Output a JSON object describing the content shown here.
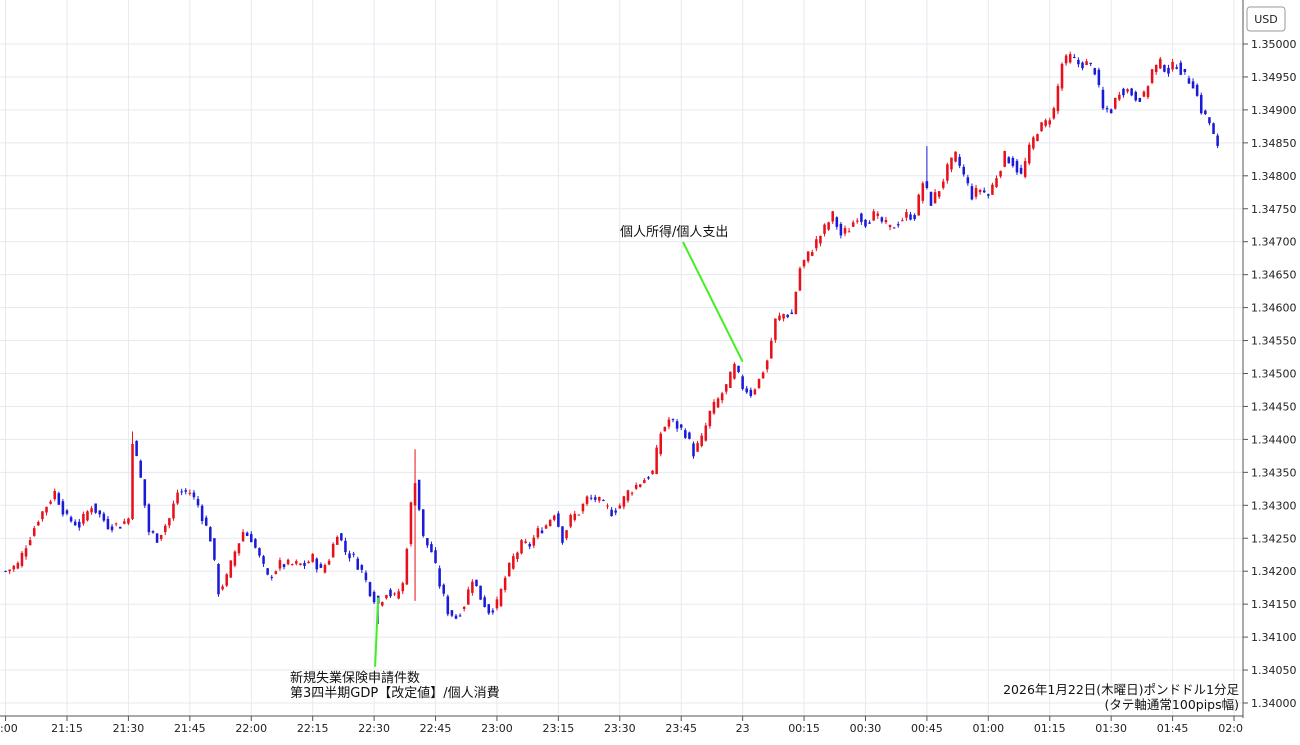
{
  "chart_data": {
    "type": "candlestick",
    "currency_label": "USD",
    "y_ticks": [
      "1.34000",
      "1.34050",
      "1.34100",
      "1.34150",
      "1.34200",
      "1.34250",
      "1.34300",
      "1.34350",
      "1.34400",
      "1.34450",
      "1.34500",
      "1.34550",
      "1.34600",
      "1.34650",
      "1.34700",
      "1.34750",
      "1.34800",
      "1.34850",
      "1.34900",
      "1.34950",
      "1.35000"
    ],
    "ylim": [
      1.3398,
      1.35025
    ],
    "x_ticks": [
      ":00",
      "21:15",
      "21:30",
      "21:45",
      "22:00",
      "22:15",
      "22:30",
      "22:45",
      "23:00",
      "23:15",
      "23:30",
      "23:45",
      "23",
      "00:15",
      "00:30",
      "00:45",
      "01:00",
      "01:15",
      "01:30",
      "01:45",
      "02:0"
    ],
    "grid": true,
    "colors": {
      "up": "#e8101a",
      "down": "#1a1ad8",
      "annotation_line": "#44ee22",
      "grid": "#e4eaf0"
    },
    "annotations": [
      {
        "lines": [
          "新規失業保険申請件数",
          "第3四半期GDP【改定値】/個人消費"
        ],
        "time": "22:30",
        "price": 1.3406
      },
      {
        "lines": [
          "個人所得/個人支出"
        ],
        "time": "00:00",
        "price": 1.3451
      }
    ],
    "caption": [
      "2026年1月22日(木曜日)ポンドドル1分足",
      "(タテ軸通常100pips幅)"
    ],
    "keypoints": [
      [
        "21:00",
        1.342
      ],
      [
        "21:03",
        1.3421
      ],
      [
        "21:05",
        1.3424
      ],
      [
        "21:08",
        1.3428
      ],
      [
        "21:10",
        1.343
      ],
      [
        "21:12",
        1.3432
      ],
      [
        "21:15",
        1.3428
      ],
      [
        "21:18",
        1.3427
      ],
      [
        "21:21",
        1.343
      ],
      [
        "21:25",
        1.3427
      ],
      [
        "21:28",
        1.3427
      ],
      [
        "21:30",
        1.3428
      ],
      [
        "21:31",
        1.344
      ],
      [
        "21:33",
        1.3434
      ],
      [
        "21:35",
        1.3426
      ],
      [
        "21:37",
        1.3425
      ],
      [
        "21:40",
        1.3428
      ],
      [
        "21:42",
        1.3432
      ],
      [
        "21:45",
        1.3432
      ],
      [
        "21:47",
        1.343
      ],
      [
        "21:50",
        1.3425
      ],
      [
        "21:52",
        1.3417
      ],
      [
        "21:54",
        1.3419
      ],
      [
        "21:56",
        1.3423
      ],
      [
        "21:58",
        1.3426
      ],
      [
        "22:00",
        1.3425
      ],
      [
        "22:02",
        1.3422
      ],
      [
        "22:04",
        1.3419
      ],
      [
        "22:07",
        1.3421
      ],
      [
        "22:10",
        1.3421
      ],
      [
        "22:13",
        1.3421
      ],
      [
        "22:15",
        1.3422
      ],
      [
        "22:17",
        1.342
      ],
      [
        "22:19",
        1.3422
      ],
      [
        "22:21",
        1.3426
      ],
      [
        "22:23",
        1.3423
      ],
      [
        "22:25",
        1.3422
      ],
      [
        "22:27",
        1.342
      ],
      [
        "22:29",
        1.3417
      ],
      [
        "22:31",
        1.3415
      ],
      [
        "22:33",
        1.3417
      ],
      [
        "22:35",
        1.3416
      ],
      [
        "22:37",
        1.3418
      ],
      [
        "22:39",
        1.343
      ],
      [
        "22:40",
        1.3434
      ],
      [
        "22:42",
        1.3425
      ],
      [
        "22:44",
        1.3423
      ],
      [
        "22:46",
        1.3418
      ],
      [
        "22:48",
        1.3414
      ],
      [
        "22:50",
        1.3413
      ],
      [
        "22:52",
        1.3415
      ],
      [
        "22:54",
        1.3419
      ],
      [
        "22:56",
        1.3416
      ],
      [
        "22:58",
        1.3414
      ],
      [
        "23:00",
        1.3415
      ],
      [
        "23:02",
        1.3419
      ],
      [
        "23:04",
        1.3422
      ],
      [
        "23:06",
        1.3424
      ],
      [
        "23:08",
        1.3424
      ],
      [
        "23:10",
        1.3426
      ],
      [
        "23:12",
        1.3427
      ],
      [
        "23:14",
        1.3429
      ],
      [
        "23:16",
        1.3425
      ],
      [
        "23:18",
        1.3428
      ],
      [
        "23:20",
        1.3429
      ],
      [
        "23:22",
        1.3431
      ],
      [
        "23:24",
        1.3431
      ],
      [
        "23:26",
        1.343
      ],
      [
        "23:28",
        1.3429
      ],
      [
        "23:30",
        1.343
      ],
      [
        "23:32",
        1.3432
      ],
      [
        "23:34",
        1.3433
      ],
      [
        "23:36",
        1.3434
      ],
      [
        "23:38",
        1.3435
      ],
      [
        "23:40",
        1.3441
      ],
      [
        "23:42",
        1.3443
      ],
      [
        "23:44",
        1.3442
      ],
      [
        "23:46",
        1.3441
      ],
      [
        "23:48",
        1.3438
      ],
      [
        "23:50",
        1.344
      ],
      [
        "23:52",
        1.3444
      ],
      [
        "23:54",
        1.3446
      ],
      [
        "23:56",
        1.3448
      ],
      [
        "23:58",
        1.3451
      ],
      [
        "00:00",
        1.3448
      ],
      [
        "00:02",
        1.3447
      ],
      [
        "00:04",
        1.3449
      ],
      [
        "00:06",
        1.3452
      ],
      [
        "00:08",
        1.3458
      ],
      [
        "00:10",
        1.3459
      ],
      [
        "00:12",
        1.3459
      ],
      [
        "00:14",
        1.3466
      ],
      [
        "00:16",
        1.3468
      ],
      [
        "00:18",
        1.347
      ],
      [
        "00:20",
        1.3472
      ],
      [
        "00:22",
        1.3474
      ],
      [
        "00:24",
        1.3471
      ],
      [
        "00:26",
        1.3472
      ],
      [
        "00:28",
        1.3474
      ],
      [
        "00:30",
        1.3473
      ],
      [
        "00:32",
        1.3474
      ],
      [
        "00:34",
        1.3473
      ],
      [
        "00:36",
        1.3472
      ],
      [
        "00:38",
        1.3473
      ],
      [
        "00:40",
        1.3474
      ],
      [
        "00:42",
        1.3474
      ],
      [
        "00:44",
        1.3479
      ],
      [
        "00:46",
        1.3476
      ],
      [
        "00:48",
        1.3478
      ],
      [
        "00:50",
        1.3481
      ],
      [
        "00:52",
        1.3483
      ],
      [
        "00:54",
        1.348
      ],
      [
        "00:56",
        1.3477
      ],
      [
        "00:58",
        1.3478
      ],
      [
        "01:00",
        1.3477
      ],
      [
        "01:02",
        1.348
      ],
      [
        "01:04",
        1.3483
      ],
      [
        "01:06",
        1.3482
      ],
      [
        "01:08",
        1.348
      ],
      [
        "01:10",
        1.3484
      ],
      [
        "01:12",
        1.3487
      ],
      [
        "01:14",
        1.3488
      ],
      [
        "01:16",
        1.349
      ],
      [
        "01:18",
        1.3497
      ],
      [
        "01:20",
        1.3498
      ],
      [
        "01:22",
        1.3497
      ],
      [
        "01:24",
        1.3497
      ],
      [
        "01:26",
        1.3496
      ],
      [
        "01:28",
        1.349
      ],
      [
        "01:30",
        1.349
      ],
      [
        "01:32",
        1.3493
      ],
      [
        "01:34",
        1.3493
      ],
      [
        "01:36",
        1.3492
      ],
      [
        "01:38",
        1.3492
      ],
      [
        "01:40",
        1.3496
      ],
      [
        "01:42",
        1.3497
      ],
      [
        "01:44",
        1.3496
      ],
      [
        "01:46",
        1.3497
      ],
      [
        "01:48",
        1.3495
      ],
      [
        "01:50",
        1.3494
      ],
      [
        "01:52",
        1.349
      ],
      [
        "01:54",
        1.3488
      ],
      [
        "01:56",
        1.3484
      ]
    ],
    "spikes": [
      {
        "time": "21:31",
        "high": 1.34412
      },
      {
        "time": "22:40",
        "high": 1.34385,
        "low": 1.34155
      },
      {
        "time": "22:31",
        "low": 1.3412
      },
      {
        "time": "00:45",
        "high": 1.34845
      }
    ]
  }
}
